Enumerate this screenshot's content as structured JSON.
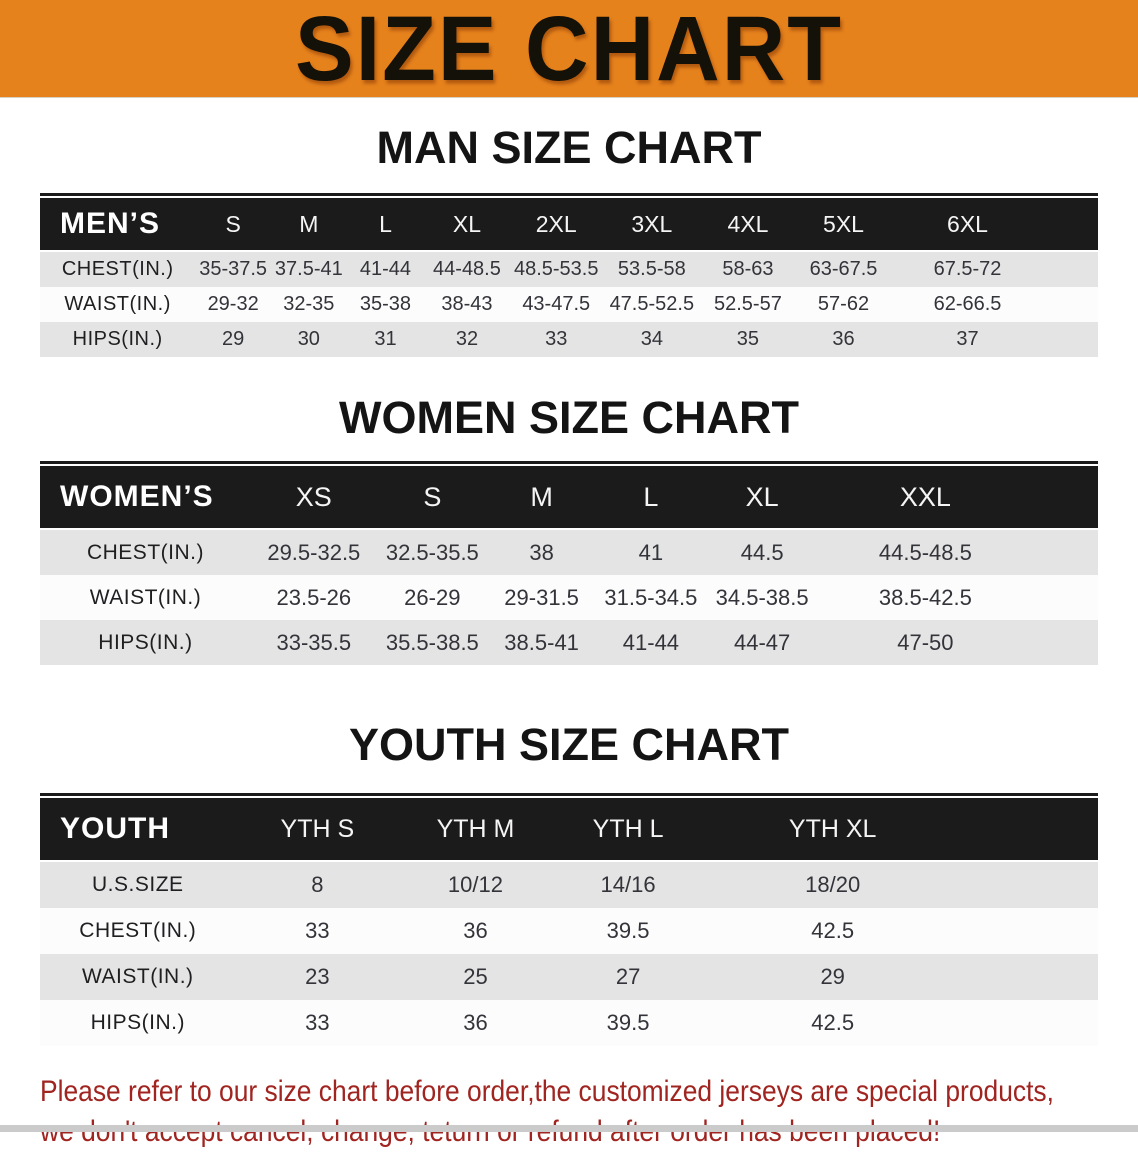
{
  "banner": {
    "title": "SIZE CHART",
    "bg_color": "#E6821C",
    "text_color": "#141108"
  },
  "sections": [
    {
      "heading": "MAN SIZE CHART",
      "table": {
        "header_label": "MEN’S",
        "columns": [
          "S",
          "M",
          "L",
          "XL",
          "2XL",
          "3XL",
          "4XL",
          "5XL",
          "6XL"
        ],
        "rows": [
          {
            "label": "CHEST(IN.)",
            "values": [
              "35-37.5",
              "37.5-41",
              "41-44",
              "44-48.5",
              "48.5-53.5",
              "53.5-58",
              "58-63",
              "63-67.5",
              "67.5-72"
            ]
          },
          {
            "label": "WAIST(IN.)",
            "values": [
              "29-32",
              "32-35",
              "35-38",
              "38-43",
              "43-47.5",
              "47.5-52.5",
              "52.5-57",
              "57-62",
              "62-66.5"
            ]
          },
          {
            "label": "HIPS(IN.)",
            "values": [
              "29",
              "30",
              "31",
              "32",
              "33",
              "34",
              "35",
              "36",
              "37"
            ]
          }
        ]
      }
    },
    {
      "heading": "WOMEN SIZE CHART",
      "table": {
        "header_label": "WOMEN’S",
        "columns": [
          "XS",
          "S",
          "M",
          "L",
          "XL",
          "XXL"
        ],
        "rows": [
          {
            "label": "CHEST(IN.)",
            "values": [
              "29.5-32.5",
              "32.5-35.5",
              "38",
              "41",
              "44.5",
              "44.5-48.5"
            ]
          },
          {
            "label": "WAIST(IN.)",
            "values": [
              "23.5-26",
              "26-29",
              "29-31.5",
              "31.5-34.5",
              "34.5-38.5",
              "38.5-42.5"
            ]
          },
          {
            "label": "HIPS(IN.)",
            "values": [
              "33-35.5",
              "35.5-38.5",
              "38.5-41",
              "41-44",
              "44-47",
              "47-50"
            ]
          }
        ]
      }
    },
    {
      "heading": "YOUTH SIZE CHART",
      "table": {
        "header_label": "YOUTH",
        "columns": [
          "YTH S",
          "YTH M",
          "YTH L",
          "YTH XL"
        ],
        "rows": [
          {
            "label": "U.S.SIZE",
            "values": [
              "8",
              "10/12",
              "14/16",
              "18/20"
            ]
          },
          {
            "label": "CHEST(IN.)",
            "values": [
              "33",
              "36",
              "39.5",
              "42.5"
            ]
          },
          {
            "label": "WAIST(IN.)",
            "values": [
              "23",
              "25",
              "27",
              "29"
            ]
          },
          {
            "label": "HIPS(IN.)",
            "values": [
              "33",
              "36",
              "39.5",
              "42.5"
            ]
          }
        ]
      }
    }
  ],
  "footer": {
    "line1": "Please refer to our size chart before order,the customized jerseys are special products,",
    "line2": "we don't accept cancel, change, teturn or refund after order has been placed!",
    "text_color": "#A02420"
  },
  "colors": {
    "table_header_bg": "#1C1B1B",
    "row_shade": "#E4E4E4",
    "row_light": "#FCFCFC"
  }
}
